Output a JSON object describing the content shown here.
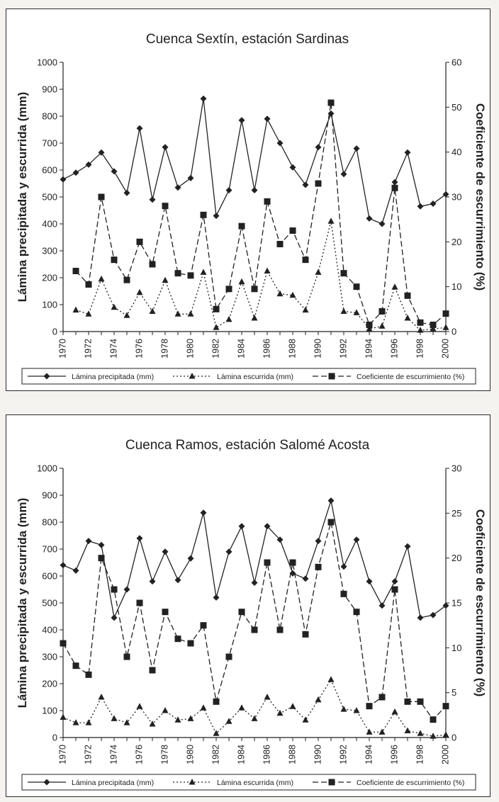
{
  "chart_data": [
    {
      "type": "line",
      "title": "Cuenca Sextín, estación Sardinas",
      "ylabel": "Lámina precipitada y escurrida (mm)",
      "y2label": "Coeficiente de escurrimiento (%)",
      "ylim": [
        0,
        1000
      ],
      "y2lim": [
        0,
        60
      ],
      "yticks": [
        "0",
        "100",
        "200",
        "300",
        "400",
        "500",
        "600",
        "700",
        "800",
        "900",
        "1000"
      ],
      "y2ticks": [
        "0",
        "10",
        "20",
        "30",
        "40",
        "50",
        "60"
      ],
      "xlim": [
        1970,
        2000
      ],
      "xticks": [
        "1970",
        "1972",
        "1974",
        "1976",
        "1978",
        "1980",
        "1982",
        "1984",
        "1986",
        "1988",
        "1990",
        "1992",
        "1994",
        "1996",
        "1998",
        "2000"
      ],
      "legend_position": "bottom",
      "series": [
        {
          "name": "Lámina precipitada (mm)",
          "axis": "left",
          "marker": "diamond",
          "dash": "solid",
          "x": [
            1970,
            1971,
            1972,
            1973,
            1974,
            1975,
            1976,
            1977,
            1978,
            1979,
            1980,
            1981,
            1982,
            1983,
            1984,
            1985,
            1986,
            1987,
            1988,
            1989,
            1990,
            1991,
            1992,
            1993,
            1994,
            1995,
            1996,
            1997,
            1998,
            1999,
            2000
          ],
          "values": [
            565,
            590,
            620,
            665,
            595,
            515,
            755,
            490,
            685,
            535,
            570,
            865,
            430,
            525,
            785,
            525,
            790,
            700,
            610,
            545,
            685,
            810,
            585,
            680,
            420,
            400,
            555,
            665,
            465,
            475,
            510
          ]
        },
        {
          "name": "Lámina escurrida (mm)",
          "axis": "left",
          "marker": "triangle",
          "dash": "dotted",
          "x": [
            1971,
            1972,
            1973,
            1974,
            1975,
            1976,
            1977,
            1978,
            1979,
            1980,
            1981,
            1982,
            1983,
            1984,
            1985,
            1986,
            1987,
            1988,
            1989,
            1990,
            1991,
            1992,
            1993,
            1994,
            1995,
            1996,
            1997,
            1998,
            1999,
            2000
          ],
          "values": [
            80,
            65,
            195,
            90,
            60,
            145,
            75,
            190,
            65,
            65,
            220,
            15,
            45,
            185,
            50,
            225,
            140,
            135,
            80,
            220,
            410,
            75,
            70,
            10,
            20,
            165,
            50,
            5,
            10,
            15
          ]
        },
        {
          "name": "Coeficiente de escurrimiento (%)",
          "axis": "right",
          "marker": "square",
          "dash": "dashed",
          "x": [
            1971,
            1972,
            1973,
            1974,
            1975,
            1976,
            1977,
            1978,
            1979,
            1980,
            1981,
            1982,
            1983,
            1984,
            1985,
            1986,
            1987,
            1988,
            1989,
            1990,
            1991,
            1992,
            1993,
            1994,
            1995,
            1996,
            1997,
            1998,
            1999,
            2000
          ],
          "values": [
            13.5,
            10.5,
            30,
            16,
            11.5,
            20,
            15,
            28,
            13,
            12.5,
            26,
            5,
            9.5,
            23.5,
            9.5,
            29,
            19.5,
            22.5,
            16,
            33,
            51,
            13,
            10,
            1.5,
            4.5,
            32,
            8,
            2,
            1.5,
            4
          ]
        }
      ]
    },
    {
      "type": "line",
      "title": "Cuenca Ramos, estación Salomé Acosta",
      "ylabel": "Lámina precipitada y escurrida (mm)",
      "y2label": "Coeficiente de escurrimiento (%)",
      "ylim": [
        0,
        1000
      ],
      "y2lim": [
        0,
        30
      ],
      "yticks": [
        "0",
        "100",
        "200",
        "300",
        "400",
        "500",
        "600",
        "700",
        "800",
        "900",
        "1000"
      ],
      "y2ticks": [
        "0",
        "5",
        "10",
        "15",
        "20",
        "25",
        "30"
      ],
      "xlim": [
        1970,
        2000
      ],
      "xticks": [
        "1970",
        "1972",
        "1974",
        "1976",
        "1978",
        "1980",
        "1982",
        "1984",
        "1986",
        "1988",
        "1990",
        "1992",
        "1994",
        "1996",
        "1998",
        "2000"
      ],
      "legend_position": "bottom",
      "series": [
        {
          "name": "Lámina precipitada (mm)",
          "axis": "left",
          "marker": "diamond",
          "dash": "solid",
          "x": [
            1970,
            1971,
            1972,
            1973,
            1974,
            1975,
            1976,
            1977,
            1978,
            1979,
            1980,
            1981,
            1982,
            1983,
            1984,
            1985,
            1986,
            1987,
            1988,
            1989,
            1990,
            1991,
            1992,
            1993,
            1994,
            1995,
            1996,
            1997,
            1998,
            1999,
            2000
          ],
          "values": [
            640,
            620,
            730,
            715,
            445,
            550,
            740,
            580,
            690,
            585,
            665,
            835,
            520,
            690,
            785,
            575,
            785,
            735,
            610,
            590,
            730,
            880,
            635,
            735,
            580,
            490,
            580,
            710,
            445,
            455,
            490
          ]
        },
        {
          "name": "Lámina escurrida (mm)",
          "axis": "left",
          "marker": "triangle",
          "dash": "dotted",
          "x": [
            1970,
            1971,
            1972,
            1973,
            1974,
            1975,
            1976,
            1977,
            1978,
            1979,
            1980,
            1981,
            1982,
            1983,
            1984,
            1985,
            1986,
            1987,
            1988,
            1989,
            1990,
            1991,
            1992,
            1993,
            1994,
            1995,
            1996,
            1997,
            1998,
            1999,
            2000
          ],
          "values": [
            75,
            55,
            55,
            150,
            70,
            55,
            115,
            50,
            100,
            65,
            70,
            110,
            15,
            60,
            110,
            70,
            150,
            90,
            115,
            65,
            140,
            215,
            105,
            100,
            20,
            20,
            95,
            25,
            15,
            5,
            10
          ]
        },
        {
          "name": "Coeficiente de escurrimiento (%)",
          "axis": "right",
          "marker": "square",
          "dash": "dashed",
          "x": [
            1970,
            1971,
            1972,
            1973,
            1974,
            1975,
            1976,
            1977,
            1978,
            1979,
            1980,
            1981,
            1982,
            1983,
            1984,
            1985,
            1986,
            1987,
            1988,
            1989,
            1990,
            1991,
            1992,
            1993,
            1994,
            1995,
            1996,
            1997,
            1998,
            1999,
            2000
          ],
          "values": [
            10.5,
            8,
            7,
            20,
            16.5,
            9,
            15,
            7.5,
            14,
            11,
            10.5,
            12.5,
            4,
            9,
            14,
            12,
            19.5,
            12,
            19.5,
            11.5,
            19,
            24,
            16,
            14,
            3.5,
            4.5,
            16.5,
            4,
            4,
            2,
            3.5
          ]
        }
      ]
    }
  ]
}
